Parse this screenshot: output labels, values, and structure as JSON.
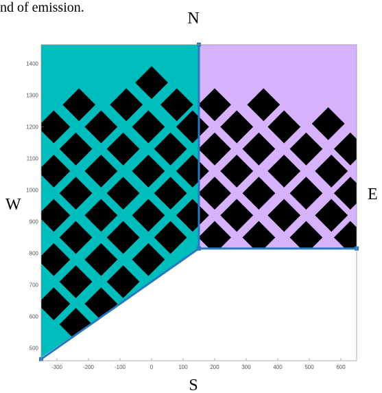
{
  "caption_fragment": "nd of emission.",
  "compass": {
    "north": "N",
    "south": "S",
    "east": "E",
    "west": "W"
  },
  "colors": {
    "west_region": "#00BDBD",
    "east_region": "#D5B2FB",
    "tiles": "#000000",
    "boundary": "#2A78BE"
  },
  "chart_data": {
    "type": "scatter",
    "title": "",
    "xlabel": "",
    "ylabel": "",
    "xlim": [
      -350,
      650
    ],
    "ylim": [
      460,
      1460
    ],
    "xticks": [
      -300,
      -200,
      -100,
      0,
      100,
      200,
      300,
      400,
      500,
      600
    ],
    "yticks": [
      500,
      600,
      700,
      800,
      900,
      1000,
      1100,
      1200,
      1300,
      1400
    ],
    "west_region": [
      [
        -350,
        1460
      ],
      [
        150,
        1460
      ],
      [
        150,
        815
      ],
      [
        -350,
        470
      ]
    ],
    "east_region": [
      [
        150,
        1460
      ],
      [
        650,
        1460
      ],
      [
        650,
        815
      ],
      [
        150,
        815
      ]
    ],
    "boundary_line": [
      [
        150,
        1460
      ],
      [
        150,
        815
      ],
      [
        650,
        815
      ]
    ],
    "boundary_diagonal": [
      [
        150,
        815
      ],
      [
        -350,
        465
      ]
    ],
    "tile_half_diagonal": 52,
    "tiles_west": [
      [
        -230,
        1270
      ],
      [
        -80,
        1270
      ],
      [
        0,
        1340
      ],
      [
        80,
        1270
      ],
      [
        -310,
        1200
      ],
      [
        -160,
        1200
      ],
      [
        -10,
        1200
      ],
      [
        130,
        1200
      ],
      [
        -240,
        1130
      ],
      [
        -90,
        1130
      ],
      [
        60,
        1130
      ],
      [
        -310,
        1060
      ],
      [
        -160,
        1060
      ],
      [
        -10,
        1060
      ],
      [
        130,
        1060
      ],
      [
        -240,
        990
      ],
      [
        -90,
        990
      ],
      [
        60,
        990
      ],
      [
        -310,
        920
      ],
      [
        -160,
        920
      ],
      [
        -10,
        920
      ],
      [
        130,
        920
      ],
      [
        -240,
        850
      ],
      [
        -90,
        850
      ],
      [
        60,
        850
      ],
      [
        -310,
        780
      ],
      [
        -160,
        780
      ],
      [
        -10,
        780
      ],
      [
        -240,
        710
      ],
      [
        -90,
        710
      ],
      [
        -310,
        640
      ],
      [
        -160,
        640
      ],
      [
        -240,
        575
      ]
    ],
    "tiles_east": [
      [
        200,
        1270
      ],
      [
        355,
        1270
      ],
      [
        560,
        1210
      ],
      [
        270,
        1200
      ],
      [
        420,
        1200
      ],
      [
        200,
        1130
      ],
      [
        340,
        1130
      ],
      [
        490,
        1130
      ],
      [
        630,
        1130
      ],
      [
        270,
        1060
      ],
      [
        420,
        1060
      ],
      [
        570,
        1060
      ],
      [
        200,
        990
      ],
      [
        340,
        990
      ],
      [
        490,
        990
      ],
      [
        630,
        990
      ],
      [
        270,
        920
      ],
      [
        420,
        920
      ],
      [
        570,
        920
      ],
      [
        200,
        850
      ],
      [
        340,
        850
      ],
      [
        490,
        850
      ],
      [
        630,
        850
      ]
    ]
  }
}
